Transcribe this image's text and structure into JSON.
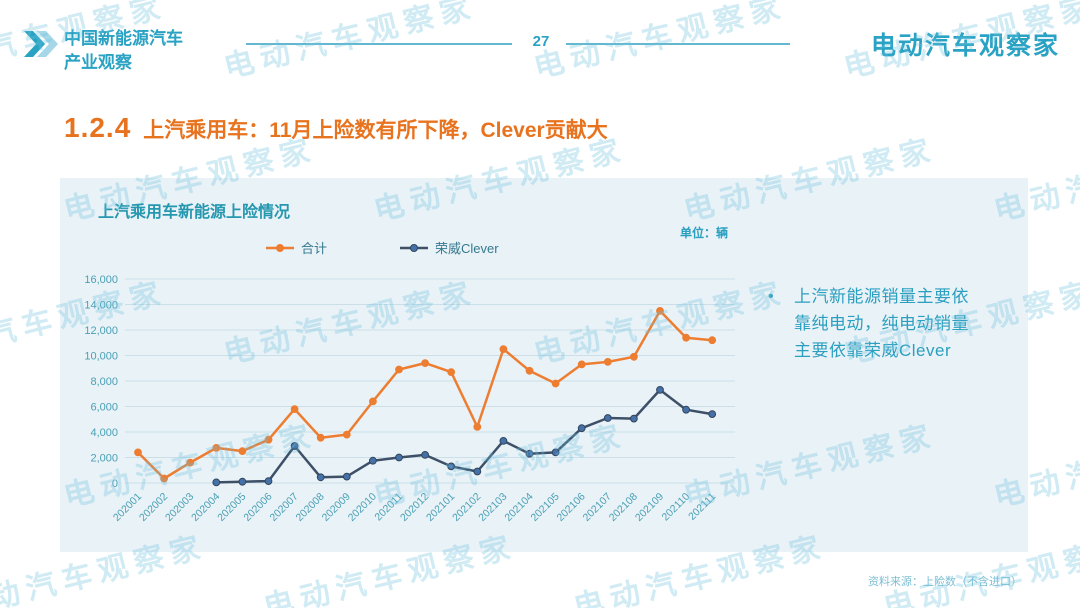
{
  "header": {
    "brand_line1": "中国新能源汽车",
    "brand_line2": "产业观察",
    "page_number": "27",
    "logo_text": "电动汽车观察家"
  },
  "section_title": {
    "index": "1.2.4",
    "text": "上汽乘用车：11月上险数有所下降，Clever贡献大"
  },
  "panel": {
    "chart_title": "上汽乘用车新能源上险情况",
    "unit_label": "单位：辆",
    "bullet_char": "•",
    "bullet_text": "上汽新能源销量主要依靠纯电动，纯电动销量主要依靠荣威Clever"
  },
  "footer": {
    "source": "资料来源：上险数（不含进口）"
  },
  "watermark_text": "电动汽车观察家",
  "colors": {
    "brand_teal": "#29A2C4",
    "title_orange": "#E8731F",
    "card_background": "#E9F2F7",
    "gridline": "#CBDFE9",
    "axis_text": "#4AA0B5",
    "series_total": "#ED7D31",
    "series_clever_line": "#3D5068",
    "series_clever_marker": "#4472A8"
  },
  "chart_data": {
    "type": "line",
    "title": "上汽乘用车新能源上险情况",
    "unit": "辆",
    "grid": true,
    "legend_position": "top",
    "ylim": [
      0,
      16000
    ],
    "ytick_step": 2000,
    "yticks": [
      0,
      2000,
      4000,
      6000,
      8000,
      10000,
      12000,
      14000,
      16000
    ],
    "categories": [
      "202001",
      "202002",
      "202003",
      "202004",
      "202005",
      "202006",
      "202007",
      "202008",
      "202009",
      "202010",
      "202011",
      "202012",
      "202101",
      "202102",
      "202103",
      "202104",
      "202105",
      "202106",
      "202107",
      "202108",
      "202109",
      "202110",
      "202111"
    ],
    "series": [
      {
        "name": "合计",
        "line_color": "#ED7D31",
        "marker_color": "#ED7D31",
        "marker_stroke": "#ED7D31",
        "values": [
          2400,
          350,
          1600,
          2750,
          2500,
          3400,
          5800,
          3550,
          3800,
          6400,
          8900,
          9400,
          8700,
          4400,
          10500,
          8800,
          7800,
          9300,
          9500,
          9900,
          13500,
          11400,
          11200
        ]
      },
      {
        "name": "荣威Clever",
        "line_color": "#3D5068",
        "marker_color": "#4472A8",
        "marker_stroke": "#33455C",
        "values": [
          null,
          null,
          null,
          50,
          100,
          150,
          2900,
          450,
          500,
          1750,
          2000,
          2200,
          1300,
          900,
          3300,
          2300,
          2400,
          4300,
          5100,
          5050,
          7300,
          5750,
          5400
        ]
      }
    ]
  }
}
